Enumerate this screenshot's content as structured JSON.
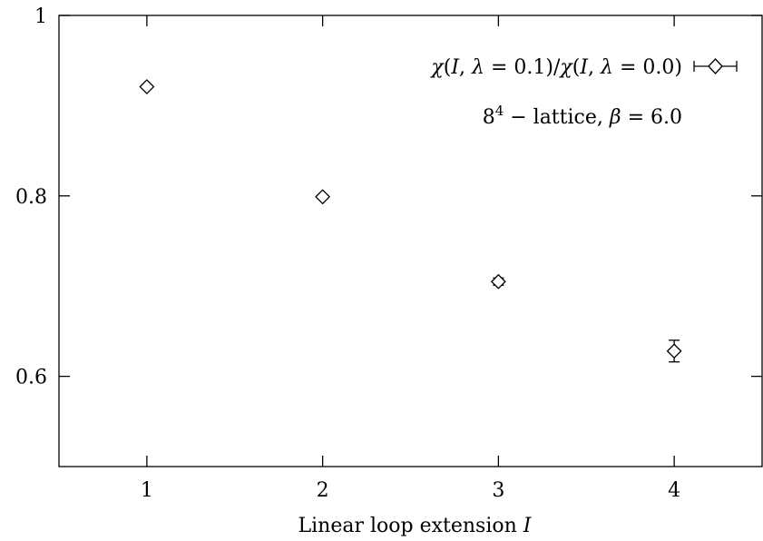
{
  "chart_data": {
    "type": "scatter",
    "xlabel": "Linear loop extension I",
    "xlabel_parts": {
      "text": "Linear loop extension ",
      "var": "I"
    },
    "ylabel": "",
    "xlim": [
      0.5,
      4.5
    ],
    "ylim": [
      0.5,
      1.0
    ],
    "xticks": [
      1,
      2,
      3,
      4
    ],
    "xtick_labels": [
      "1",
      "2",
      "3",
      "4"
    ],
    "yticks": [
      0.6,
      0.8,
      1.0
    ],
    "ytick_labels": [
      "0.6",
      "0.8",
      "1"
    ],
    "grid": false,
    "legend_position": "top-right",
    "series": [
      {
        "name": "χ(I, λ = 0.1)/χ(I, λ = 0.0)",
        "marker": "diamond",
        "x": [
          1,
          2,
          3,
          4
        ],
        "y": [
          0.921,
          0.799,
          0.705,
          0.628
        ],
        "yerr": [
          0.002,
          0.002,
          0.004,
          0.012
        ]
      }
    ],
    "annotation": {
      "base": "8",
      "exponent": "4",
      "lattice": " − lattice, ",
      "beta_sym": "β",
      "beta_eq": " = 6.0"
    }
  }
}
